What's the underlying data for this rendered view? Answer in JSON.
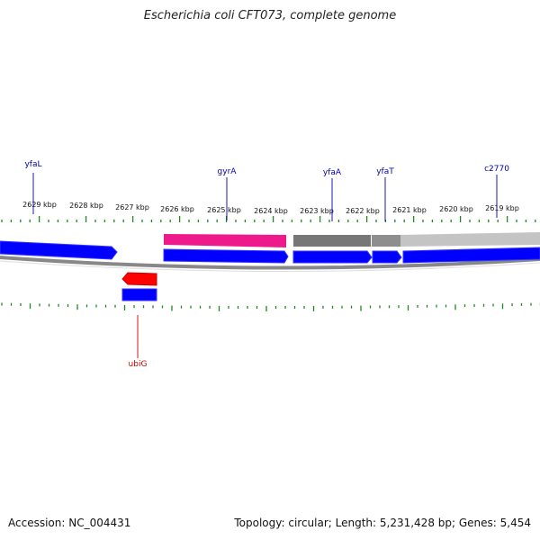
{
  "title": "Escherichia coli CFT073, complete genome",
  "footer": {
    "accession": "Accession: NC_004431",
    "summary": "Topology: circular; Length: 5,231,428 bp; Genes: 5,454"
  },
  "colors": {
    "gene": "#0000ff",
    "gene_reverse": "#ff0000",
    "highlight_pink": "#ee1a8c",
    "gray_dark": "#777777",
    "gray_light": "#c4c4c4",
    "ticks": "#1a8a1a",
    "label_blue": "#0000aa",
    "label_red": "#cc0000"
  },
  "scale": {
    "unit": "kbp",
    "labels": [
      "2629 kbp",
      "2628 kbp",
      "2627 kbp",
      "2626 kbp",
      "2625 kbp",
      "2624 kbp",
      "2623 kbp",
      "2622 kbp",
      "2621 kbp",
      "2620 kbp",
      "2619 kbp"
    ]
  },
  "gene_labels": [
    {
      "name": "yfaL",
      "strand": "forward"
    },
    {
      "name": "gyrA",
      "strand": "forward"
    },
    {
      "name": "yfaA",
      "strand": "forward"
    },
    {
      "name": "yfaT",
      "strand": "forward"
    },
    {
      "name": "c2770",
      "strand": "forward"
    },
    {
      "name": "ubiG",
      "strand": "reverse"
    }
  ]
}
